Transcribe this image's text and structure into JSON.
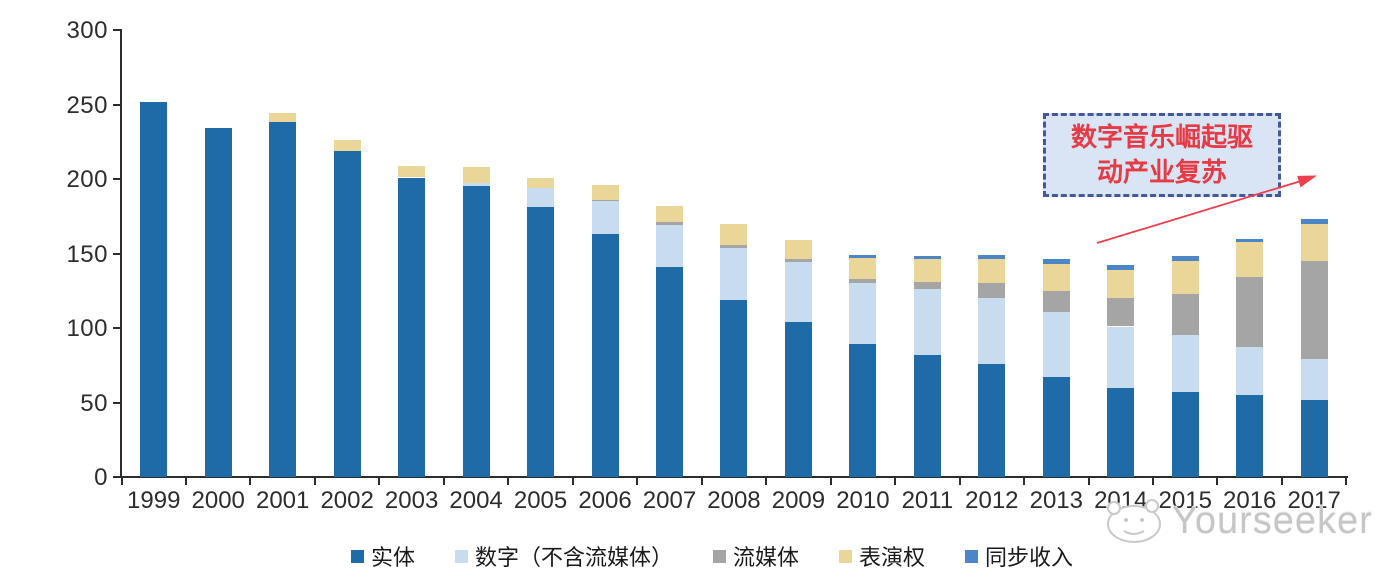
{
  "chart_data": {
    "type": "bar",
    "stacked": true,
    "title": "",
    "xlabel": "",
    "ylabel": "",
    "ylim": [
      0,
      300
    ],
    "yticks": [
      0,
      50,
      100,
      150,
      200,
      250,
      300
    ],
    "grid": false,
    "legend_position": "bottom",
    "categories": [
      "1999",
      "2000",
      "2001",
      "2002",
      "2003",
      "2004",
      "2005",
      "2006",
      "2007",
      "2008",
      "2009",
      "2010",
      "2011",
      "2012",
      "2013",
      "2014",
      "2015",
      "2016",
      "2017"
    ],
    "series": [
      {
        "name": "实体",
        "color": "#1f6ba8",
        "values": [
          252,
          234,
          238,
          219,
          201,
          195,
          181,
          163,
          141,
          119,
          104,
          89,
          82,
          76,
          67,
          60,
          57,
          55,
          52
        ]
      },
      {
        "name": "数字（不含流媒体）",
        "color": "#c8dcf0",
        "values": [
          0,
          0,
          0,
          0,
          0,
          2,
          13,
          22,
          28,
          35,
          40,
          41,
          44,
          44,
          44,
          41,
          38,
          32,
          27
        ]
      },
      {
        "name": "流媒体",
        "color": "#a5a5a5",
        "values": [
          0,
          0,
          0,
          0,
          0,
          0,
          0,
          1,
          2,
          2,
          2,
          3,
          5,
          10,
          14,
          19,
          28,
          47,
          66
        ]
      },
      {
        "name": "表演权",
        "color": "#e9d698",
        "values": [
          0,
          0,
          6,
          7,
          8,
          11,
          7,
          10,
          11,
          14,
          13,
          14,
          15,
          16,
          18,
          19,
          22,
          24,
          25
        ]
      },
      {
        "name": "同步收入",
        "color": "#4d86c6",
        "values": [
          0,
          0,
          0,
          0,
          0,
          0,
          0,
          0,
          0,
          0,
          0,
          2,
          2,
          3,
          3,
          3,
          3,
          2,
          3
        ]
      }
    ],
    "totals": [
      252,
      234,
      244,
      226,
      209,
      208,
      201,
      196,
      182,
      170,
      159,
      149,
      148,
      149,
      146,
      142,
      148,
      160,
      173
    ]
  },
  "annotation": {
    "full_text": "数字音乐崛起驱动产业复苏",
    "lines": [
      "数字音乐崛起驱",
      "动产业复苏"
    ],
    "text_color": "#e63a44",
    "box_fill": "#d9e5f4",
    "box_border": "#44599c",
    "arrow_color": "#ee3f4d"
  },
  "watermark": {
    "text": "Yourseeker",
    "color": "#c6c6c6"
  }
}
